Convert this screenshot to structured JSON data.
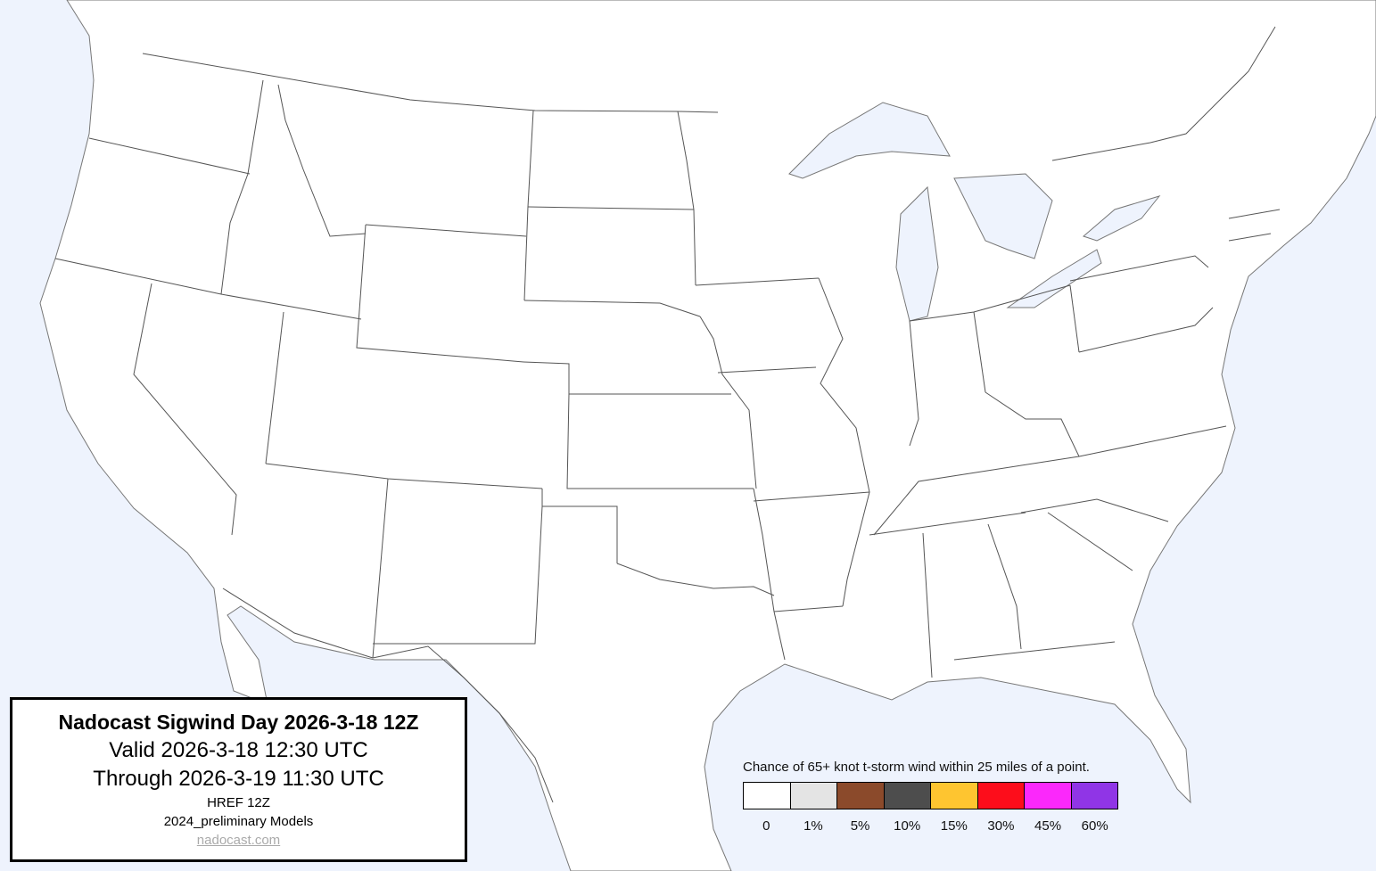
{
  "info_box": {
    "title": "Nadocast Sigwind Day 2026-3-18 12Z",
    "valid": "Valid 2026-3-18 12:30 UTC",
    "through": "Through 2026-3-19 11:30 UTC",
    "model": "HREF 12Z",
    "models_version": "2024_preliminary Models",
    "link": "nadocast.com"
  },
  "legend": {
    "title": "Chance of 65+ knot t-storm wind within 25 miles of a point.",
    "bins": [
      {
        "label": "0",
        "color": "#ffffff"
      },
      {
        "label": "1%",
        "color": "#e4e4e4"
      },
      {
        "label": "5%",
        "color": "#8b4a2b"
      },
      {
        "label": "10%",
        "color": "#4d4d4d"
      },
      {
        "label": "15%",
        "color": "#fec530"
      },
      {
        "label": "30%",
        "color": "#fd0d1b"
      },
      {
        "label": "45%",
        "color": "#fb28fb"
      },
      {
        "label": "60%",
        "color": "#9035e6"
      }
    ]
  },
  "map": {
    "water_color": "#eef3fd",
    "land_color": "#ffffff",
    "border_color": "#555555"
  }
}
